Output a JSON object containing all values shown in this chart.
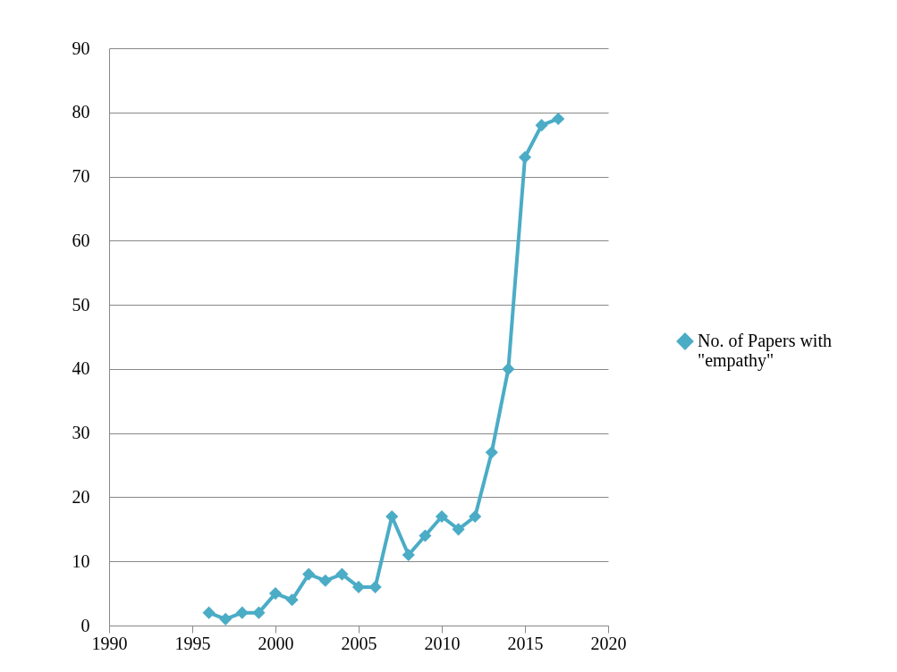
{
  "chart_data": {
    "type": "line",
    "x": [
      1996,
      1997,
      1998,
      1999,
      2000,
      2001,
      2002,
      2003,
      2004,
      2005,
      2006,
      2007,
      2008,
      2009,
      2010,
      2011,
      2012,
      2013,
      2014,
      2015,
      2016,
      2017
    ],
    "series": [
      {
        "name": "No. of Papers with \"empathy\"",
        "color": "#4bacc6",
        "values": [
          2,
          1,
          2,
          2,
          5,
          4,
          8,
          7,
          8,
          6,
          6,
          17,
          11,
          14,
          17,
          15,
          17,
          27,
          40,
          73,
          78,
          79
        ]
      }
    ],
    "xlim": [
      1990,
      2020
    ],
    "xticks": [
      1990,
      1995,
      2000,
      2005,
      2010,
      2015,
      2020
    ],
    "ylim": [
      0,
      90
    ],
    "yticks": [
      0,
      10,
      20,
      30,
      40,
      50,
      60,
      70,
      80,
      90
    ],
    "grid": "y",
    "legend": "right",
    "marker": "diamond",
    "line_style": "solid"
  }
}
